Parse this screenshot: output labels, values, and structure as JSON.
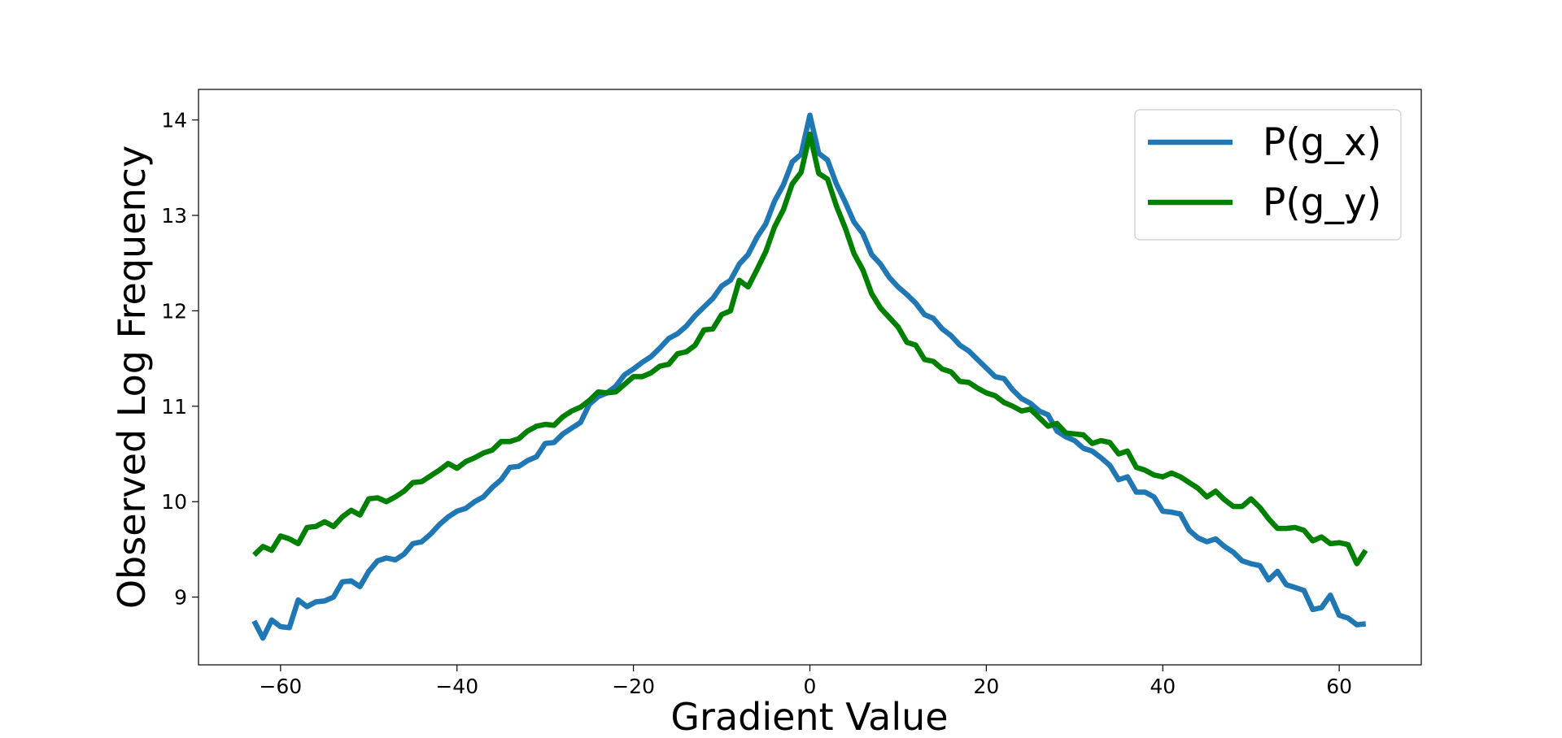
{
  "chart_data": {
    "type": "line",
    "xlabel": "Gradient Value",
    "ylabel": "Observed Log Frequency",
    "x": [
      -63,
      -62,
      -61,
      -60,
      -59,
      -58,
      -57,
      -56,
      -55,
      -54,
      -53,
      -52,
      -51,
      -50,
      -49,
      -48,
      -47,
      -46,
      -45,
      -44,
      -43,
      -42,
      -41,
      -40,
      -39,
      -38,
      -37,
      -36,
      -35,
      -34,
      -33,
      -32,
      -31,
      -30,
      -29,
      -28,
      -27,
      -26,
      -25,
      -24,
      -23,
      -22,
      -21,
      -20,
      -19,
      -18,
      -17,
      -16,
      -15,
      -14,
      -13,
      -12,
      -11,
      -10,
      -9,
      -8,
      -7,
      -6,
      -5,
      -4,
      -3,
      -2,
      -1,
      0,
      1,
      2,
      3,
      4,
      5,
      6,
      7,
      8,
      9,
      10,
      11,
      12,
      13,
      14,
      15,
      16,
      17,
      18,
      19,
      20,
      21,
      22,
      23,
      24,
      25,
      26,
      27,
      28,
      29,
      30,
      31,
      32,
      33,
      34,
      35,
      36,
      37,
      38,
      39,
      40,
      41,
      42,
      43,
      44,
      45,
      46,
      47,
      48,
      49,
      50,
      51,
      52,
      53,
      54,
      55,
      56,
      57,
      58,
      59,
      60,
      61,
      62,
      63
    ],
    "series": [
      {
        "name": "P(g_x)",
        "color": "#1f77b4",
        "values": [
          8.75,
          8.57,
          8.76,
          8.69,
          8.68,
          8.97,
          8.9,
          8.95,
          8.96,
          9.0,
          9.16,
          9.17,
          9.11,
          9.27,
          9.38,
          9.41,
          9.39,
          9.45,
          9.56,
          9.58,
          9.66,
          9.76,
          9.84,
          9.9,
          9.93,
          10.0,
          10.05,
          10.15,
          10.23,
          10.36,
          10.37,
          10.43,
          10.47,
          10.61,
          10.62,
          10.71,
          10.77,
          10.83,
          11.02,
          11.1,
          11.14,
          11.21,
          11.33,
          11.39,
          11.46,
          11.52,
          11.61,
          11.71,
          11.76,
          11.84,
          11.95,
          12.04,
          12.13,
          12.26,
          12.32,
          12.49,
          12.59,
          12.77,
          12.91,
          13.15,
          13.32,
          13.56,
          13.64,
          14.05,
          13.65,
          13.58,
          13.33,
          13.14,
          12.93,
          12.81,
          12.59,
          12.49,
          12.35,
          12.25,
          12.17,
          12.08,
          11.96,
          11.92,
          11.81,
          11.74,
          11.64,
          11.58,
          11.49,
          11.4,
          11.31,
          11.29,
          11.17,
          11.08,
          11.03,
          10.95,
          10.91,
          10.74,
          10.68,
          10.64,
          10.56,
          10.53,
          10.46,
          10.38,
          10.23,
          10.26,
          10.1,
          10.1,
          10.05,
          9.9,
          9.89,
          9.87,
          9.7,
          9.62,
          9.58,
          9.61,
          9.53,
          9.47,
          9.38,
          9.35,
          9.33,
          9.18,
          9.27,
          9.13,
          9.1,
          9.07,
          8.87,
          8.89,
          9.02,
          8.81,
          8.78,
          8.71,
          8.72
        ]
      },
      {
        "name": "P(g_y)",
        "color": "#008000",
        "values": [
          9.44,
          9.53,
          9.49,
          9.64,
          9.61,
          9.56,
          9.73,
          9.74,
          9.79,
          9.74,
          9.84,
          9.91,
          9.86,
          10.03,
          10.04,
          10.0,
          10.05,
          10.11,
          10.2,
          10.21,
          10.27,
          10.33,
          10.4,
          10.35,
          10.42,
          10.46,
          10.51,
          10.54,
          10.63,
          10.63,
          10.66,
          10.74,
          10.79,
          10.81,
          10.8,
          10.89,
          10.95,
          10.99,
          11.06,
          11.15,
          11.14,
          11.15,
          11.23,
          11.31,
          11.31,
          11.35,
          11.42,
          11.44,
          11.55,
          11.57,
          11.64,
          11.8,
          11.81,
          11.96,
          12.0,
          12.32,
          12.25,
          12.43,
          12.62,
          12.88,
          13.06,
          13.33,
          13.45,
          13.85,
          13.44,
          13.38,
          13.1,
          12.87,
          12.6,
          12.43,
          12.18,
          12.03,
          11.93,
          11.83,
          11.67,
          11.64,
          11.49,
          11.47,
          11.39,
          11.36,
          11.26,
          11.25,
          11.19,
          11.14,
          11.11,
          11.04,
          11.0,
          10.95,
          10.97,
          10.88,
          10.79,
          10.82,
          10.72,
          10.71,
          10.7,
          10.61,
          10.64,
          10.62,
          10.5,
          10.53,
          10.36,
          10.33,
          10.28,
          10.26,
          10.3,
          10.26,
          10.2,
          10.14,
          10.05,
          10.11,
          10.02,
          9.95,
          9.95,
          10.03,
          9.94,
          9.82,
          9.72,
          9.72,
          9.73,
          9.7,
          9.59,
          9.63,
          9.56,
          9.57,
          9.55,
          9.35,
          9.49
        ]
      }
    ],
    "xlim": [
      -69.3,
      69.3
    ],
    "ylim": [
      8.29,
      14.32
    ],
    "xticks": [
      {
        "value": -60,
        "label": "−60"
      },
      {
        "value": -40,
        "label": "−40"
      },
      {
        "value": -20,
        "label": "−20"
      },
      0,
      20,
      40,
      60
    ],
    "yticks": [
      9,
      10,
      11,
      12,
      13,
      14
    ],
    "legend": "upper right"
  }
}
